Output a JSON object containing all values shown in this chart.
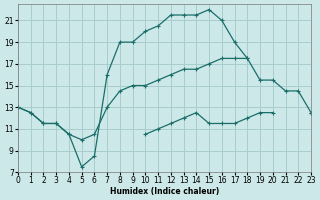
{
  "xlabel": "Humidex (Indice chaleur)",
  "background_color": "#cde8e8",
  "grid_color": "#a8cccc",
  "line_color": "#1a6e6a",
  "xlim": [
    0,
    23
  ],
  "ylim": [
    7,
    22.5
  ],
  "xticks": [
    0,
    1,
    2,
    3,
    4,
    5,
    6,
    7,
    8,
    9,
    10,
    11,
    12,
    13,
    14,
    15,
    16,
    17,
    18,
    19,
    20,
    21,
    22,
    23
  ],
  "yticks": [
    7,
    9,
    11,
    13,
    15,
    17,
    19,
    21
  ],
  "line_top_x": [
    0,
    1,
    2,
    3,
    4,
    5,
    6,
    7,
    8,
    9,
    10,
    11,
    12,
    13,
    14,
    15,
    16,
    17,
    18
  ],
  "line_top_y": [
    13,
    12.5,
    11.5,
    11.5,
    10.5,
    7.5,
    8.5,
    16.0,
    19.0,
    19.0,
    20.0,
    20.5,
    21.5,
    21.5,
    21.5,
    22.0,
    21.0,
    19.0,
    17.5
  ],
  "line_mid_x": [
    0,
    1,
    2,
    3,
    4,
    5,
    6,
    7,
    8,
    9,
    10,
    11,
    12,
    13,
    14,
    15,
    16,
    17,
    18,
    19,
    20,
    21,
    22,
    23
  ],
  "line_mid_y": [
    13,
    12.5,
    11.5,
    11.5,
    10.5,
    10.0,
    10.5,
    13.0,
    14.5,
    15.0,
    15.0,
    15.5,
    16.0,
    16.5,
    16.5,
    17.0,
    17.5,
    17.5,
    17.5,
    15.5,
    15.5,
    14.5,
    14.5,
    12.5
  ],
  "line_bot_x": [
    0,
    1,
    2,
    3,
    4,
    5,
    6,
    7,
    8,
    9,
    10,
    11,
    12,
    13,
    14,
    15,
    16,
    17,
    18,
    19,
    20,
    21,
    22,
    23
  ],
  "line_bot_y": [
    null,
    null,
    null,
    null,
    null,
    null,
    null,
    null,
    null,
    null,
    10.5,
    11.0,
    11.5,
    12.0,
    12.5,
    11.5,
    11.5,
    11.5,
    12.0,
    12.5,
    12.5,
    null,
    null,
    12.5
  ]
}
